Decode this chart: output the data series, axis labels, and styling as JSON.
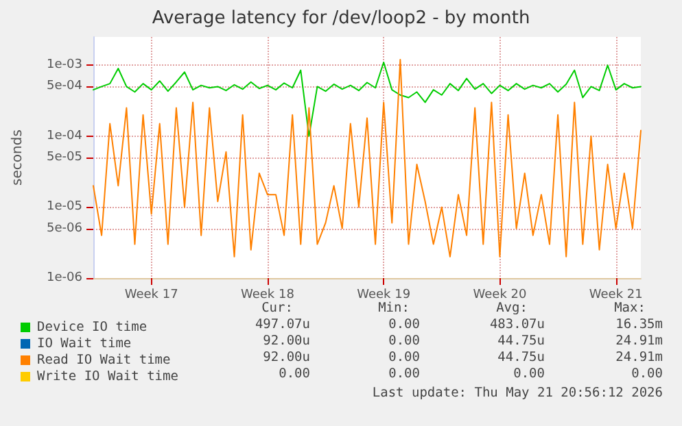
{
  "chart_data": {
    "type": "line",
    "title": "Average latency for /dev/loop2 - by month",
    "ylabel": "seconds",
    "log": true,
    "grid": true,
    "legend": "bottom",
    "marker": "none",
    "line_style": "solid",
    "ylim": [
      1e-06,
      0.0025
    ],
    "yticks": [
      {
        "value": 1e-06,
        "label": "1e-06"
      },
      {
        "value": 5e-06,
        "label": "5e-06"
      },
      {
        "value": 1e-05,
        "label": "1e-05"
      },
      {
        "value": 5e-05,
        "label": "5e-05"
      },
      {
        "value": 0.0001,
        "label": "1e-04"
      },
      {
        "value": 0.0005,
        "label": "5e-04"
      },
      {
        "value": 0.001,
        "label": "1e-03"
      }
    ],
    "categories": [
      null,
      null,
      null,
      null,
      null,
      null,
      null,
      "Week 17",
      null,
      null,
      null,
      null,
      null,
      null,
      null,
      null,
      null,
      null,
      null,
      null,
      null,
      "Week 18",
      null,
      null,
      null,
      null,
      null,
      null,
      null,
      null,
      null,
      null,
      null,
      null,
      null,
      "Week 19",
      null,
      null,
      null,
      null,
      null,
      null,
      null,
      null,
      null,
      null,
      null,
      null,
      null,
      "Week 20",
      null,
      null,
      null,
      null,
      null,
      null,
      null,
      null,
      null,
      null,
      null,
      null,
      null,
      "Week 21",
      null,
      null,
      null
    ],
    "series": [
      {
        "name": "Device IO time",
        "color": "#00cc00",
        "values": [
          0.00045,
          0.0005,
          0.00055,
          0.0009,
          0.0005,
          0.00042,
          0.00055,
          0.00045,
          0.0006,
          0.00043,
          0.00058,
          0.0008,
          0.00045,
          0.00052,
          0.00048,
          0.0005,
          0.00044,
          0.00053,
          0.00046,
          0.00058,
          0.00047,
          0.00052,
          0.00045,
          0.00056,
          0.00048,
          0.00085,
          0.0001,
          0.0005,
          0.00043,
          0.00054,
          0.00046,
          0.00052,
          0.00044,
          0.00057,
          0.00048,
          0.0011,
          0.00045,
          0.00038,
          0.00035,
          0.00042,
          0.0003,
          0.00045,
          0.00038,
          0.00055,
          0.00044,
          0.00065,
          0.00046,
          0.00055,
          0.0004,
          0.00052,
          0.00044,
          0.00055,
          0.00046,
          0.00052,
          0.00048,
          0.00055,
          0.00042,
          0.00054,
          0.00085,
          0.00035,
          0.0005,
          0.00044,
          0.001,
          0.00045,
          0.00055,
          0.00048,
          0.0005
        ]
      },
      {
        "name": "IO Wait time",
        "color": "#0066b3",
        "values": [
          null,
          null,
          null,
          null,
          null,
          null,
          null,
          null,
          null,
          null,
          null,
          null,
          null,
          null,
          null,
          null,
          null,
          null,
          null,
          null,
          null,
          null,
          null,
          null,
          null,
          null,
          null,
          null,
          null,
          null,
          null,
          null,
          null,
          null,
          null,
          null,
          null,
          null,
          null,
          null,
          null,
          null,
          null,
          null,
          null,
          null,
          null,
          null,
          null,
          null,
          null,
          null,
          null,
          null,
          null,
          null,
          null,
          null,
          null,
          null,
          null,
          null,
          null,
          null,
          null,
          null,
          null
        ]
      },
      {
        "name": "Read IO Wait time",
        "color": "#ff8000",
        "values": [
          2e-05,
          4e-06,
          0.00015,
          2e-05,
          0.00025,
          3e-06,
          0.0002,
          8e-06,
          0.00015,
          3e-06,
          0.00025,
          1e-05,
          0.0003,
          4e-06,
          0.00025,
          1.2e-05,
          6e-05,
          2e-06,
          0.0002,
          2.5e-06,
          3e-05,
          1.5e-05,
          1.5e-05,
          4e-06,
          0.0002,
          3e-06,
          0.00025,
          3e-06,
          6e-06,
          2e-05,
          5e-06,
          0.00015,
          1e-05,
          0.00018,
          3e-06,
          0.0003,
          6e-06,
          0.0012,
          3e-06,
          4e-05,
          1.2e-05,
          3e-06,
          1e-05,
          2e-06,
          1.5e-05,
          4e-06,
          0.00025,
          3e-06,
          0.0003,
          2e-06,
          0.0002,
          5e-06,
          3e-05,
          4e-06,
          1.5e-05,
          3e-06,
          0.0002,
          2e-06,
          0.0003,
          3e-06,
          0.0001,
          2.5e-06,
          4e-05,
          5e-06,
          3e-05,
          5e-06,
          0.00012
        ]
      },
      {
        "name": "Write IO Wait time",
        "color": "#ffcc00",
        "values": [
          null,
          null,
          null,
          null,
          null,
          null,
          null,
          null,
          null,
          null,
          null,
          null,
          null,
          null,
          null,
          null,
          null,
          null,
          null,
          null,
          null,
          null,
          null,
          null,
          null,
          null,
          null,
          null,
          null,
          null,
          null,
          null,
          null,
          null,
          null,
          null,
          null,
          null,
          null,
          null,
          null,
          null,
          null,
          null,
          null,
          null,
          null,
          null,
          null,
          null,
          null,
          null,
          null,
          null,
          null,
          null,
          null,
          null,
          null,
          null,
          null,
          null,
          null,
          null,
          null,
          null,
          null
        ]
      }
    ],
    "annotations": [
      "Cur:",
      "Min:",
      "Avg:",
      "Max:",
      "497.07u",
      "0.00",
      "483.07u",
      "16.35m",
      "92.00u",
      "0.00",
      "44.75u",
      "24.91m",
      "92.00u",
      "0.00",
      "44.75u",
      "24.91m",
      "0.00",
      "0.00",
      "0.00",
      "0.00",
      "Last update: Thu May 21 20:56:12 2026"
    ]
  }
}
